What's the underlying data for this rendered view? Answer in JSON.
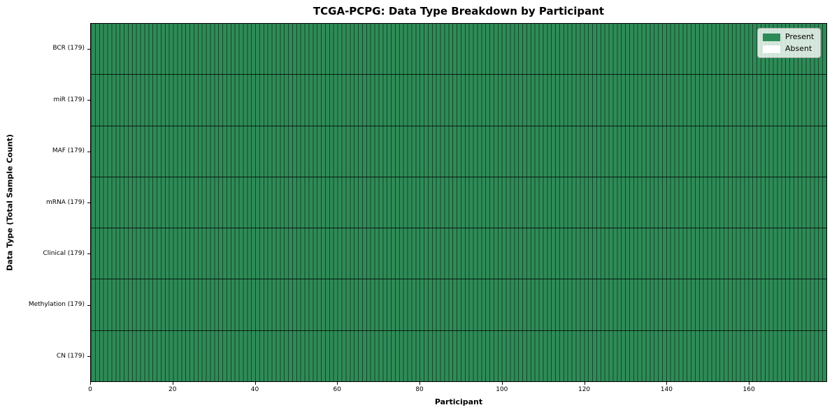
{
  "chart_data": {
    "type": "heatmap",
    "title": "TCGA-PCPG: Data Type Breakdown by Participant",
    "xlabel": "Participant",
    "ylabel": "Data Type (Total Sample Count)",
    "xlim": [
      0,
      179
    ],
    "x_ticks": [
      0,
      20,
      40,
      60,
      80,
      100,
      120,
      140,
      160
    ],
    "n_participants": 179,
    "rows": [
      {
        "label": "BCR (179)",
        "data_type": "BCR",
        "total_samples": 179,
        "present_count": 179,
        "absent_count": 0
      },
      {
        "label": "miR (179)",
        "data_type": "miR",
        "total_samples": 179,
        "present_count": 179,
        "absent_count": 0
      },
      {
        "label": "MAF (179)",
        "data_type": "MAF",
        "total_samples": 179,
        "present_count": 179,
        "absent_count": 0
      },
      {
        "label": "mRNA (179)",
        "data_type": "mRNA",
        "total_samples": 179,
        "present_count": 179,
        "absent_count": 0
      },
      {
        "label": "Clinical (179)",
        "data_type": "Clinical",
        "total_samples": 179,
        "present_count": 179,
        "absent_count": 0
      },
      {
        "label": "Methylation (179)",
        "data_type": "Methylation",
        "total_samples": 179,
        "present_count": 179,
        "absent_count": 0
      },
      {
        "label": "CN (179)",
        "data_type": "CN",
        "total_samples": 179,
        "present_count": 179,
        "absent_count": 0
      }
    ],
    "legend": {
      "position": "upper right",
      "entries": [
        {
          "label": "Present",
          "color": "#2e8b57"
        },
        {
          "label": "Absent",
          "color": "#ffffff"
        }
      ]
    },
    "colors": {
      "present": "#2e8b57",
      "absent": "#ffffff",
      "cell_edge": "rgba(0,0,0,0.5)",
      "row_edge": "rgba(0,0,0,0.8)",
      "spine": "#000000"
    }
  }
}
